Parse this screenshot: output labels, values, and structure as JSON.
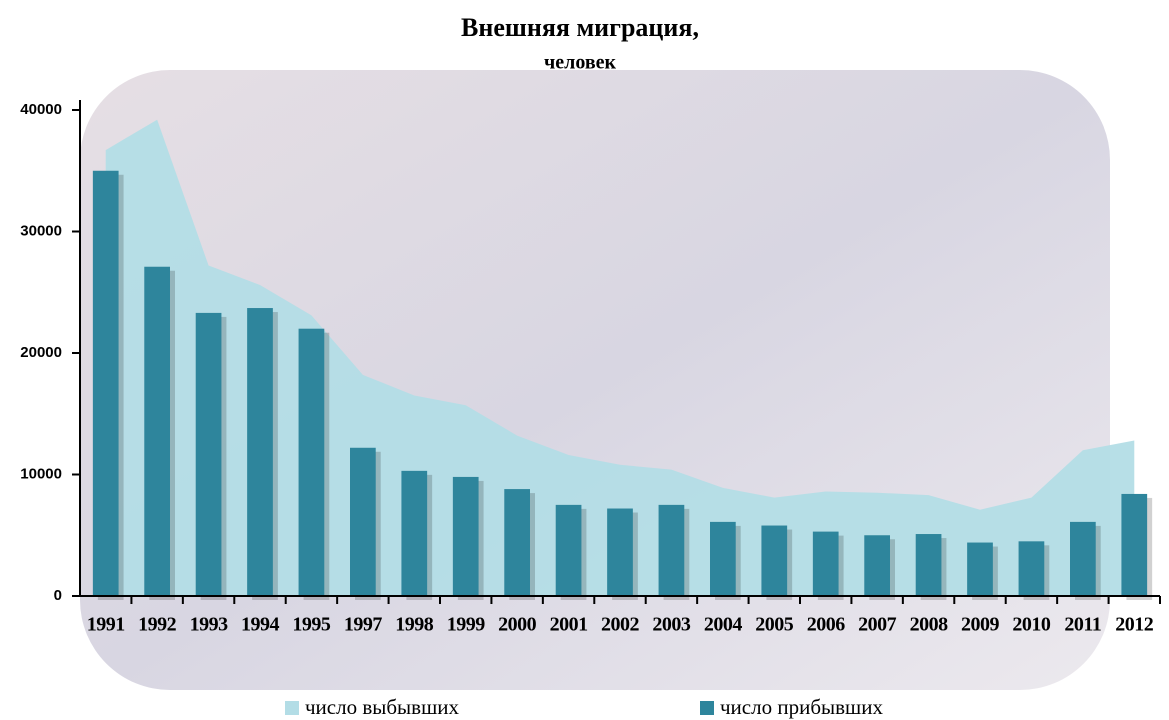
{
  "chart_data": {
    "type": "bar-area",
    "title": "Внешняя миграция,",
    "subtitle": "человек",
    "categories": [
      "1991",
      "1992",
      "1993",
      "1994",
      "1995",
      "1997",
      "1998",
      "1999",
      "2000",
      "2001",
      "2002",
      "2003",
      "2004",
      "2005",
      "2006",
      "2007",
      "2008",
      "2009",
      "2010",
      "2011",
      "2012"
    ],
    "series": [
      {
        "name": "число выбывших",
        "kind": "area",
        "color": "#b3dde6",
        "values": [
          36700,
          39200,
          27200,
          25600,
          23100,
          18200,
          16500,
          15700,
          13200,
          11600,
          10800,
          10400,
          8900,
          8100,
          8600,
          8500,
          8300,
          7100,
          8100,
          12000,
          12800
        ]
      },
      {
        "name": "число прибывших",
        "kind": "bar",
        "color": "#2e859c",
        "values": [
          35000,
          27100,
          23300,
          23700,
          22000,
          12200,
          10300,
          9800,
          8800,
          7500,
          7200,
          7500,
          6100,
          5800,
          5300,
          5000,
          5100,
          4400,
          4500,
          6100,
          8400
        ]
      }
    ],
    "ylim": [
      0,
      40000
    ],
    "yticks": [
      0,
      10000,
      20000,
      30000,
      40000
    ]
  }
}
